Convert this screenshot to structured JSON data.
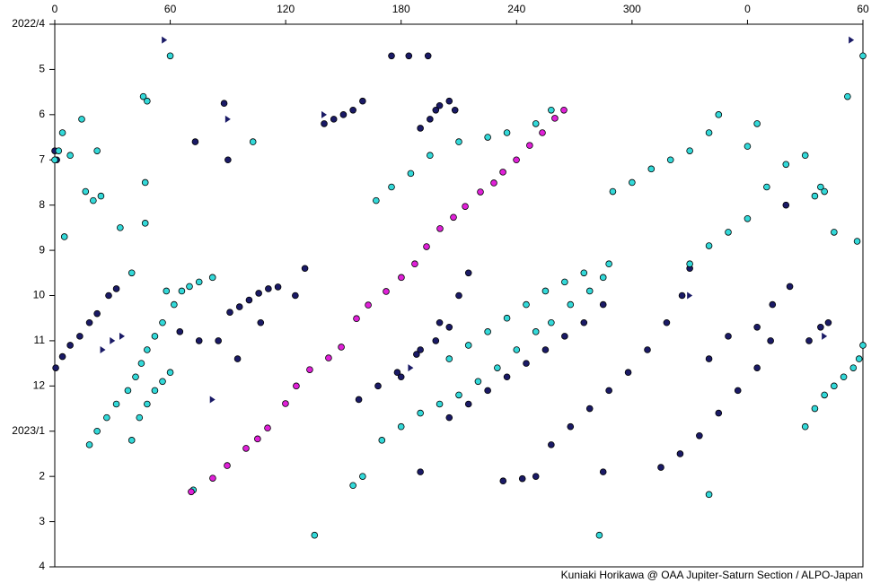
{
  "chart_data": {
    "type": "scatter",
    "footer": "Kuniaki Horikawa @ OAA Jupiter-Saturn Section / ALPO-Japan",
    "xlim": [
      0,
      420
    ],
    "xticks": [
      0,
      60,
      120,
      180,
      240,
      300,
      {
        "value": 360,
        "label": "0"
      },
      {
        "value": 420,
        "label": "60"
      }
    ],
    "ylim": [
      0,
      12
    ],
    "y_inverted": true,
    "yticks": [
      {
        "value": 0,
        "label": "2022/4"
      },
      {
        "value": 1,
        "label": "5"
      },
      {
        "value": 2,
        "label": "6"
      },
      {
        "value": 3,
        "label": "7"
      },
      {
        "value": 4,
        "label": "8"
      },
      {
        "value": 5,
        "label": "9"
      },
      {
        "value": 6,
        "label": "10"
      },
      {
        "value": 7,
        "label": "11"
      },
      {
        "value": 8,
        "label": "12"
      },
      {
        "value": 9,
        "label": "2023/1"
      },
      {
        "value": 10,
        "label": "2"
      },
      {
        "value": 11,
        "label": "3"
      },
      {
        "value": 12,
        "label": "4"
      }
    ],
    "grid": false,
    "series": [
      {
        "color": "#1a1a66",
        "marker": "circle",
        "x": [
          0.5,
          4,
          8,
          13,
          18,
          22,
          28,
          32,
          0,
          1,
          73,
          90,
          88,
          91,
          96,
          101,
          106,
          111,
          116,
          205,
          215,
          225,
          235,
          245,
          255,
          265,
          275,
          285,
          258,
          268,
          278,
          288,
          298,
          308,
          318,
          326,
          330,
          315,
          325,
          335,
          345,
          355,
          365,
          372,
          382,
          158,
          168,
          178,
          188,
          198,
          205,
          180,
          190,
          200,
          210,
          215,
          190,
          195,
          198,
          200,
          205,
          208,
          175,
          184,
          194,
          140,
          145,
          150,
          155,
          160,
          233,
          243,
          250,
          285,
          190,
          392,
          398,
          402,
          380,
          340,
          350,
          365,
          373,
          65,
          75,
          85,
          95,
          107,
          125,
          130
        ],
        "values": [
          7.6,
          7.35,
          7.1,
          6.9,
          6.6,
          6.4,
          6.0,
          5.85,
          2.8,
          3.0,
          2.6,
          3.0,
          1.75,
          6.37,
          6.25,
          6.1,
          5.95,
          5.85,
          5.81,
          8.7,
          8.4,
          8.1,
          7.8,
          7.5,
          7.2,
          6.9,
          6.6,
          6.2,
          9.3,
          8.9,
          8.5,
          8.1,
          7.7,
          7.2,
          6.6,
          6.0,
          5.4,
          9.8,
          9.5,
          9.1,
          8.6,
          8.1,
          7.6,
          7.0,
          5.8,
          8.3,
          8.0,
          7.7,
          7.3,
          7.0,
          6.7,
          7.8,
          7.2,
          6.6,
          6.0,
          5.5,
          2.3,
          2.1,
          1.9,
          1.8,
          1.7,
          1.9,
          0.7,
          0.7,
          0.7,
          2.2,
          2.1,
          2.0,
          1.9,
          1.7,
          10.1,
          10.05,
          10.0,
          9.9,
          9.9,
          7.0,
          6.7,
          6.6,
          4.0,
          7.4,
          6.9,
          6.7,
          6.2,
          6.8,
          7.0,
          7.0,
          7.4,
          6.6,
          6.0,
          5.4
        ]
      },
      {
        "color": "#33d9d9",
        "marker": "circle",
        "x": [
          0,
          2,
          4,
          8,
          14,
          16,
          20,
          24,
          22,
          5,
          34,
          40,
          47,
          46,
          48,
          60,
          47,
          18,
          22,
          27,
          32,
          38,
          42,
          45,
          48,
          52,
          56,
          58,
          62,
          66,
          70,
          75,
          82,
          40,
          44,
          48,
          52,
          56,
          60,
          155,
          160,
          170,
          180,
          190,
          200,
          210,
          220,
          230,
          240,
          250,
          258,
          268,
          278,
          285,
          205,
          215,
          225,
          235,
          245,
          255,
          265,
          275,
          288,
          167,
          175,
          185,
          195,
          210,
          225,
          235,
          250,
          258,
          290,
          300,
          310,
          320,
          330,
          340,
          345,
          330,
          340,
          350,
          360,
          370,
          380,
          360,
          365,
          390,
          395,
          400,
          405,
          410,
          415,
          418,
          420,
          395,
          398,
          400,
          405,
          417,
          420,
          412,
          135,
          283,
          340,
          390,
          103,
          72
        ],
        "values": [
          3.0,
          2.8,
          2.4,
          2.9,
          2.1,
          3.7,
          3.9,
          3.8,
          2.8,
          4.7,
          4.5,
          5.5,
          4.4,
          1.6,
          1.7,
          0.7,
          3.5,
          9.3,
          9.0,
          8.7,
          8.4,
          8.1,
          7.8,
          7.5,
          7.2,
          6.9,
          6.6,
          5.9,
          6.2,
          5.9,
          5.8,
          5.7,
          5.6,
          9.2,
          8.7,
          8.4,
          8.1,
          7.9,
          7.7,
          10.2,
          10.0,
          9.2,
          8.9,
          8.6,
          8.4,
          8.2,
          7.9,
          7.6,
          7.2,
          6.8,
          6.6,
          6.2,
          5.9,
          5.6,
          7.4,
          7.1,
          6.8,
          6.5,
          6.2,
          5.9,
          5.7,
          5.5,
          5.3,
          3.9,
          3.6,
          3.3,
          2.9,
          2.6,
          2.5,
          2.4,
          2.2,
          1.9,
          3.7,
          3.5,
          3.2,
          3.0,
          2.8,
          2.4,
          2.0,
          5.3,
          4.9,
          4.6,
          4.3,
          3.6,
          3.1,
          2.7,
          2.2,
          8.9,
          8.5,
          8.2,
          8.0,
          7.8,
          7.6,
          7.4,
          7.1,
          3.8,
          3.6,
          3.7,
          4.6,
          4.8,
          0.7,
          1.6,
          11.3,
          11.3,
          10.4,
          2.9,
          2.6,
          10.3
        ]
      },
      {
        "color": "#e020d8",
        "marker": "circle",
        "x": [
          70.9,
          82.1,
          89.6,
          99.4,
          105.4,
          110.6,
          119.9,
          125.5,
          132.5,
          142.3,
          148.9,
          156.8,
          162.9,
          172.2,
          180.1,
          187.1,
          193.2,
          200.2,
          207.2,
          213.3,
          221.2,
          228.2,
          232.9,
          239.9,
          246.8,
          253.4,
          259.9,
          264.6
        ],
        "values": [
          10.34,
          10.04,
          9.76,
          9.38,
          9.17,
          8.93,
          8.39,
          8.0,
          7.64,
          7.38,
          7.14,
          6.51,
          6.21,
          5.91,
          5.6,
          5.3,
          4.92,
          4.52,
          4.27,
          4.03,
          3.71,
          3.51,
          3.27,
          3.0,
          2.68,
          2.4,
          2.08,
          1.9
        ]
      },
      {
        "color": "#1a1a66",
        "marker": "triangle",
        "x": [
          57,
          414,
          30,
          35,
          25,
          90,
          140,
          185,
          330,
          400,
          82
        ],
        "values": [
          0.35,
          0.35,
          7.0,
          6.9,
          7.2,
          2.1,
          2.0,
          7.6,
          6.0,
          6.9,
          8.3
        ]
      }
    ]
  }
}
